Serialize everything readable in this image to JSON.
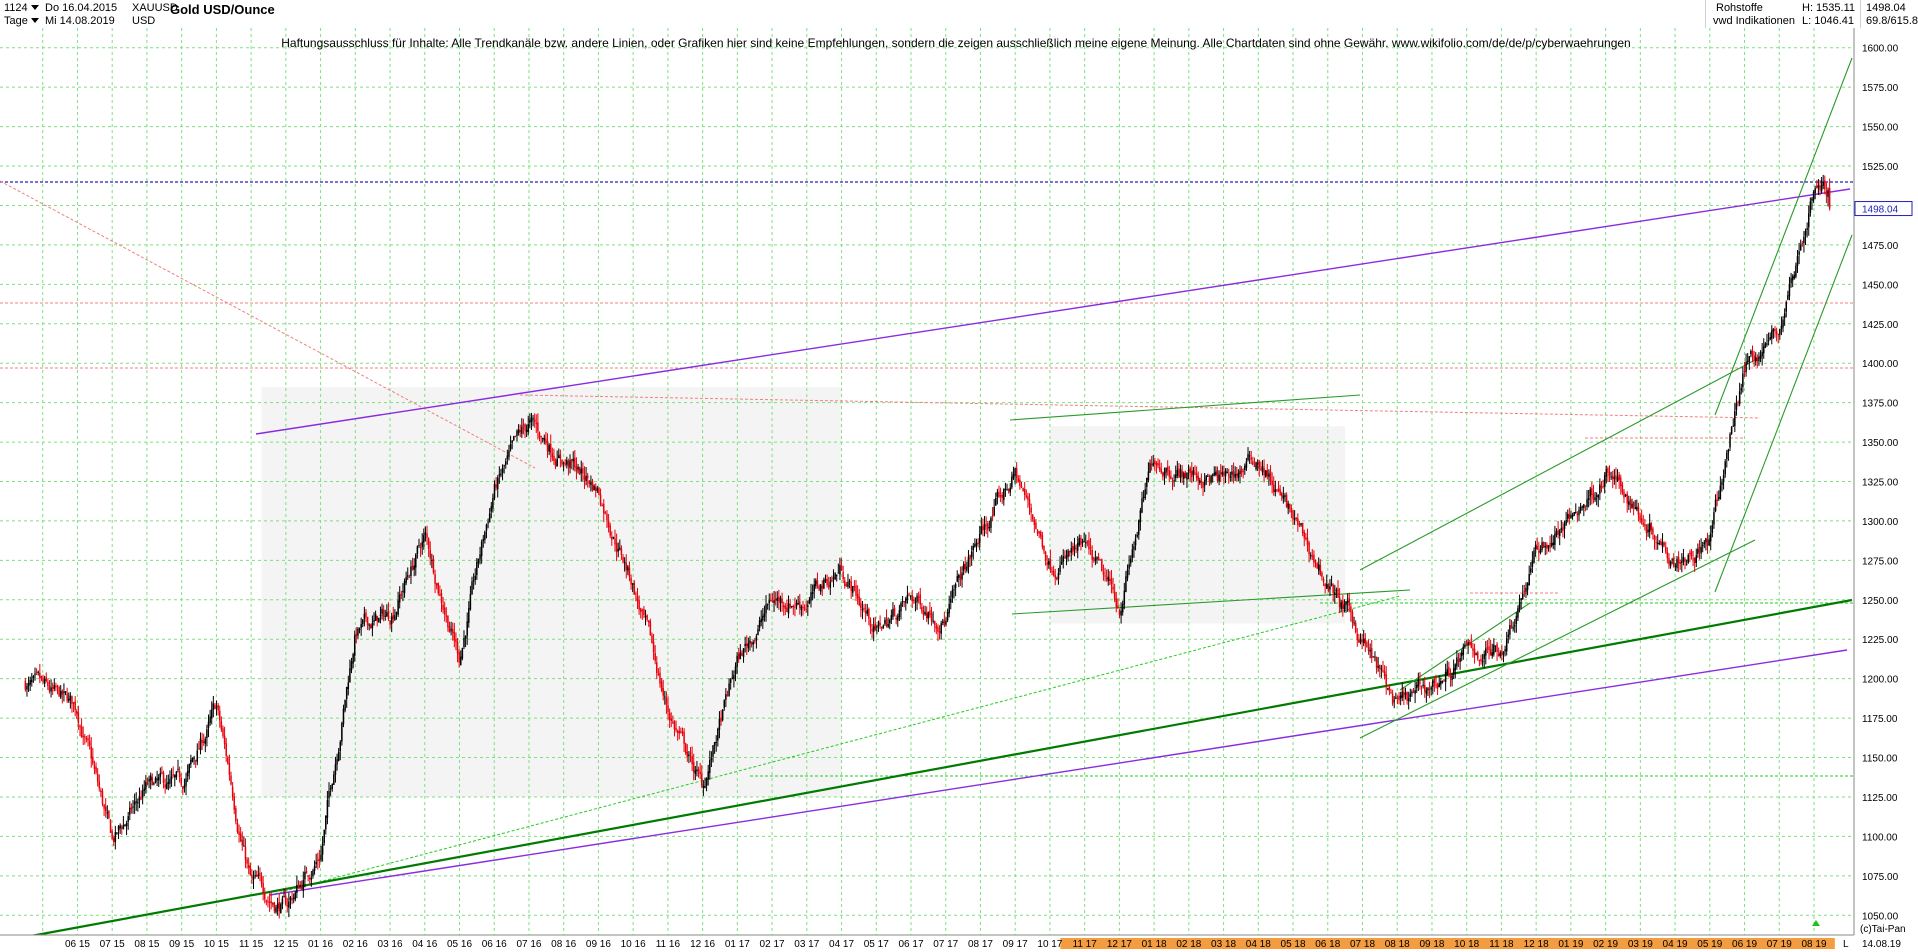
{
  "header": {
    "bars_count": "1124",
    "period": "Tage",
    "date_from": "Do 16.04.2015",
    "date_to": "Mi 14.08.2019",
    "symbol": "XAUUSD",
    "currency": "USD",
    "title": "Gold USD/Ounce",
    "market": "Rohstoffe",
    "source": "vwd Indikationen",
    "high_label": "H: 1535.11",
    "low_label": "L: 1046.41",
    "last_value": "1498.04",
    "indicator_value": "69.8/615.8"
  },
  "disclaimer": "Haftungsausschluss für Inhalte: Alle Trendkanäle bzw. andere Linien, oder Grafiken hier sind keine Empfehlungen, sondern die zeigen ausschließlich meine eigene Meinung. Alle Chartdaten sind ohne Gewähr.  www.wikifolio.com/de/de/p/cyberwaehrungen",
  "footer": {
    "copyright": "(c)Tai-Pan",
    "end_date": "14.08.19",
    "mode": "L"
  },
  "colors": {
    "up_candle": "#000000",
    "down_candle": "#e8000b",
    "grid": "#7ee07e",
    "channel_purple": "#8a2be2",
    "trend_green": "#007a00",
    "last_price": "#2020c0",
    "resistance_red": "#f08080",
    "axis_highlight": "#f39c40",
    "shade": "#f4f4f4"
  },
  "chart_data": {
    "type": "candlestick",
    "title": "Gold USD/Ounce",
    "ylim": [
      1037.5,
      1612.5
    ],
    "y_ticks": [
      1050,
      1075,
      1100,
      1125,
      1150,
      1175,
      1200,
      1225,
      1250,
      1275,
      1300,
      1325,
      1350,
      1375,
      1400,
      1425,
      1450,
      1475,
      1500,
      1525,
      1550,
      1575,
      1600
    ],
    "x_tick_labels": [
      "06 15",
      "07 15",
      "08 15",
      "09 15",
      "10 15",
      "11 15",
      "12 15",
      "01 16",
      "02 16",
      "03 16",
      "04 16",
      "05 16",
      "06 16",
      "07 16",
      "08 16",
      "09 16",
      "10 16",
      "11 16",
      "12 16",
      "01 17",
      "02 17",
      "03 17",
      "04 17",
      "05 17",
      "06 17",
      "07 17",
      "08 17",
      "09 17",
      "10 17",
      "11 17",
      "12 17",
      "01 18",
      "02 18",
      "03 18",
      "04 18",
      "05 18",
      "06 18",
      "07 18",
      "08 18",
      "09 18",
      "10 18",
      "11 18",
      "12 18",
      "01 19",
      "02 19",
      "03 19",
      "04 19",
      "05 19",
      "06 19",
      "07 19",
      "08 19"
    ],
    "last_price": 1498.04,
    "high": 1535.11,
    "low": 1046.41,
    "price_path": [
      [
        "04.2015",
        1205
      ],
      [
        "05.2015",
        1190
      ],
      [
        "06.2015",
        1180
      ],
      [
        "07.2015",
        1095
      ],
      [
        "08.2015",
        1130
      ],
      [
        "09.2015",
        1130
      ],
      [
        "10.2015",
        1180
      ],
      [
        "11.2015",
        1070
      ],
      [
        "12.2015",
        1055
      ],
      [
        "01.2016",
        1090
      ],
      [
        "02.2016",
        1230
      ],
      [
        "03.2016",
        1240
      ],
      [
        "04.2016",
        1290
      ],
      [
        "05.2016",
        1215
      ],
      [
        "06.2016",
        1320
      ],
      [
        "07.2016",
        1360
      ],
      [
        "08.2016",
        1340
      ],
      [
        "09.2016",
        1320
      ],
      [
        "10.2016",
        1260
      ],
      [
        "11.2016",
        1180
      ],
      [
        "12.2016",
        1130
      ],
      [
        "01.2017",
        1210
      ],
      [
        "02.2017",
        1250
      ],
      [
        "03.2017",
        1250
      ],
      [
        "04.2017",
        1270
      ],
      [
        "05.2017",
        1230
      ],
      [
        "06.2017",
        1250
      ],
      [
        "07.2017",
        1240
      ],
      [
        "08.2017",
        1290
      ],
      [
        "09.2017",
        1330
      ],
      [
        "10.2017",
        1275
      ],
      [
        "11.2017",
        1280
      ],
      [
        "12.2017",
        1245
      ],
      [
        "01.2018",
        1340
      ],
      [
        "02.2018",
        1330
      ],
      [
        "03.2018",
        1325
      ],
      [
        "04.2018",
        1340
      ],
      [
        "05.2018",
        1300
      ],
      [
        "06.2018",
        1260
      ],
      [
        "07.2018",
        1225
      ],
      [
        "08.2018",
        1180
      ],
      [
        "09.2018",
        1195
      ],
      [
        "10.2018",
        1215
      ],
      [
        "11.2018",
        1220
      ],
      [
        "12.2018",
        1280
      ],
      [
        "01.2019",
        1300
      ],
      [
        "02.2019",
        1330
      ],
      [
        "03.2019",
        1305
      ],
      [
        "04.2019",
        1280
      ],
      [
        "05.2019",
        1285
      ],
      [
        "06.2019",
        1400
      ],
      [
        "07.2019",
        1420
      ],
      [
        "08.2019",
        1510
      ]
    ]
  }
}
